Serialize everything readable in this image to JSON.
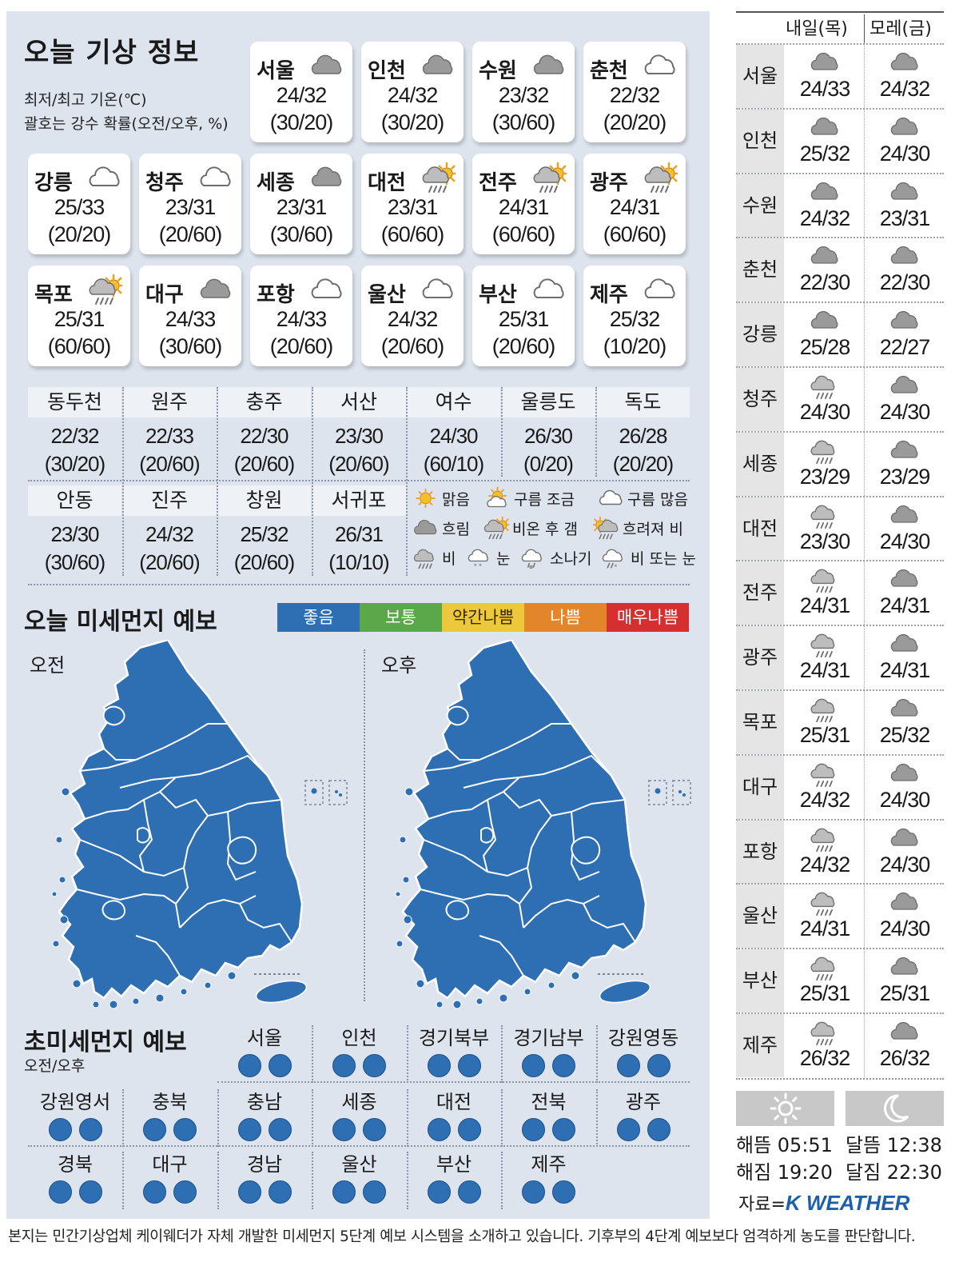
{
  "header": {
    "title": "오늘 기상 정보",
    "subtitle1": "최저/최고 기온(℃)",
    "subtitle2": "괄호는 강수 확률(오전/오후, %)"
  },
  "cards": [
    {
      "name": "서울",
      "temp": "24/32",
      "prob": "(30/20)",
      "icon": "cloudy-icon"
    },
    {
      "name": "인천",
      "temp": "24/32",
      "prob": "(30/20)",
      "icon": "cloudy-icon"
    },
    {
      "name": "수원",
      "temp": "23/32",
      "prob": "(30/60)",
      "icon": "cloudy-icon"
    },
    {
      "name": "춘천",
      "temp": "22/32",
      "prob": "(20/20)",
      "icon": "mostly-cloudy-icon"
    },
    {
      "name": "강릉",
      "temp": "25/33",
      "prob": "(20/20)",
      "icon": "mostly-cloudy-icon"
    },
    {
      "name": "청주",
      "temp": "23/31",
      "prob": "(20/60)",
      "icon": "mostly-cloudy-icon"
    },
    {
      "name": "세종",
      "temp": "23/31",
      "prob": "(30/60)",
      "icon": "cloudy-icon"
    },
    {
      "name": "대전",
      "temp": "23/31",
      "prob": "(60/60)",
      "icon": "rain-then-clear-icon"
    },
    {
      "name": "전주",
      "temp": "24/31",
      "prob": "(60/60)",
      "icon": "rain-then-clear-icon"
    },
    {
      "name": "광주",
      "temp": "24/31",
      "prob": "(60/60)",
      "icon": "rain-then-clear-icon"
    },
    {
      "name": "목포",
      "temp": "25/31",
      "prob": "(60/60)",
      "icon": "rain-then-clear-icon"
    },
    {
      "name": "대구",
      "temp": "24/33",
      "prob": "(30/60)",
      "icon": "cloudy-icon"
    },
    {
      "name": "포항",
      "temp": "24/33",
      "prob": "(20/60)",
      "icon": "mostly-cloudy-icon"
    },
    {
      "name": "울산",
      "temp": "24/32",
      "prob": "(20/60)",
      "icon": "mostly-cloudy-icon"
    },
    {
      "name": "부산",
      "temp": "25/31",
      "prob": "(20/60)",
      "icon": "mostly-cloudy-icon"
    },
    {
      "name": "제주",
      "temp": "25/32",
      "prob": "(10/20)",
      "icon": "mostly-cloudy-icon"
    }
  ],
  "small_cities": [
    {
      "name": "동두천",
      "temp": "22/32",
      "prob": "(30/20)"
    },
    {
      "name": "원주",
      "temp": "22/33",
      "prob": "(20/60)"
    },
    {
      "name": "충주",
      "temp": "22/30",
      "prob": "(20/60)"
    },
    {
      "name": "서산",
      "temp": "23/30",
      "prob": "(20/60)"
    },
    {
      "name": "여수",
      "temp": "24/30",
      "prob": "(60/10)"
    },
    {
      "name": "울릉도",
      "temp": "26/30",
      "prob": "(0/20)"
    },
    {
      "name": "독도",
      "temp": "26/28",
      "prob": "(20/20)"
    },
    {
      "name": "안동",
      "temp": "23/30",
      "prob": "(30/60)"
    },
    {
      "name": "진주",
      "temp": "24/32",
      "prob": "(20/60)"
    },
    {
      "name": "창원",
      "temp": "25/32",
      "prob": "(20/60)"
    },
    {
      "name": "서귀포",
      "temp": "26/31",
      "prob": "(10/10)"
    }
  ],
  "legend": [
    {
      "label": "맑음",
      "icon": "sunny-icon"
    },
    {
      "label": "구름 조금",
      "icon": "partly-cloudy-icon"
    },
    {
      "label": "구름 많음",
      "icon": "mostly-cloudy-icon"
    },
    {
      "label": "흐림",
      "icon": "cloudy-icon"
    },
    {
      "label": "비온 후 갬",
      "icon": "rain-then-clear-icon"
    },
    {
      "label": "흐려져 비",
      "icon": "clouding-rain-icon"
    },
    {
      "label": "비",
      "icon": "rain-icon"
    },
    {
      "label": "눈",
      "icon": "snow-icon"
    },
    {
      "label": "소나기",
      "icon": "shower-icon"
    },
    {
      "label": "비 또는 눈",
      "icon": "rain-or-snow-icon"
    }
  ],
  "dust": {
    "title": "오늘 미세먼지 예보",
    "scale": [
      {
        "label": "좋음",
        "color": "#2e6fb4"
      },
      {
        "label": "보통",
        "color": "#5aa84a"
      },
      {
        "label": "약간나쁨",
        "color": "#ecc83a"
      },
      {
        "label": "나쁨",
        "color": "#e3852b"
      },
      {
        "label": "매우나쁨",
        "color": "#d62f2f"
      }
    ],
    "am_label": "오전",
    "pm_label": "오후",
    "map_color": "#2e6fb4"
  },
  "pm25": {
    "title": "초미세먼지 예보",
    "subtitle": "오전/오후",
    "regions": [
      "서울",
      "인천",
      "경기북부",
      "경기남부",
      "강원영동",
      "강원영서",
      "충북",
      "충남",
      "세종",
      "대전",
      "전북",
      "광주",
      "경북",
      "대구",
      "경남",
      "울산",
      "부산",
      "제주"
    ],
    "level": "좋음"
  },
  "forecast": {
    "col1": "내일(목)",
    "col2": "모레(금)",
    "rows": [
      {
        "city": "서울",
        "d1": "24/33",
        "d1_icon": "cloudy-icon",
        "d2": "24/32",
        "d2_icon": "cloudy-icon"
      },
      {
        "city": "인천",
        "d1": "25/32",
        "d1_icon": "cloudy-icon",
        "d2": "24/30",
        "d2_icon": "cloudy-icon"
      },
      {
        "city": "수원",
        "d1": "24/32",
        "d1_icon": "cloudy-icon",
        "d2": "23/31",
        "d2_icon": "cloudy-icon"
      },
      {
        "city": "춘천",
        "d1": "22/30",
        "d1_icon": "cloudy-icon",
        "d2": "22/30",
        "d2_icon": "cloudy-icon"
      },
      {
        "city": "강릉",
        "d1": "25/28",
        "d1_icon": "cloudy-icon",
        "d2": "22/27",
        "d2_icon": "cloudy-icon"
      },
      {
        "city": "청주",
        "d1": "24/30",
        "d1_icon": "rain-icon",
        "d2": "24/30",
        "d2_icon": "cloudy-icon"
      },
      {
        "city": "세종",
        "d1": "23/29",
        "d1_icon": "rain-icon",
        "d2": "23/29",
        "d2_icon": "cloudy-icon"
      },
      {
        "city": "대전",
        "d1": "23/30",
        "d1_icon": "rain-icon",
        "d2": "24/30",
        "d2_icon": "cloudy-icon"
      },
      {
        "city": "전주",
        "d1": "24/31",
        "d1_icon": "rain-icon",
        "d2": "24/31",
        "d2_icon": "cloudy-icon"
      },
      {
        "city": "광주",
        "d1": "24/31",
        "d1_icon": "rain-icon",
        "d2": "24/31",
        "d2_icon": "cloudy-icon"
      },
      {
        "city": "목포",
        "d1": "25/31",
        "d1_icon": "rain-icon",
        "d2": "25/32",
        "d2_icon": "cloudy-icon"
      },
      {
        "city": "대구",
        "d1": "24/32",
        "d1_icon": "rain-icon",
        "d2": "24/30",
        "d2_icon": "cloudy-icon"
      },
      {
        "city": "포항",
        "d1": "24/32",
        "d1_icon": "rain-icon",
        "d2": "24/30",
        "d2_icon": "cloudy-icon"
      },
      {
        "city": "울산",
        "d1": "24/31",
        "d1_icon": "rain-icon",
        "d2": "24/30",
        "d2_icon": "cloudy-icon"
      },
      {
        "city": "부산",
        "d1": "25/31",
        "d1_icon": "rain-icon",
        "d2": "25/31",
        "d2_icon": "cloudy-icon"
      },
      {
        "city": "제주",
        "d1": "26/32",
        "d1_icon": "rain-icon",
        "d2": "26/32",
        "d2_icon": "cloudy-icon"
      }
    ]
  },
  "sun_moon": {
    "sunrise": "해뜸 05:51",
    "sunset": "해짐 19:20",
    "moonrise": "달뜸 12:38",
    "moonset": "달짐 22:30"
  },
  "source_label": "자료=",
  "source_brand": "K WEATHER",
  "footer": "본지는 민간기상업체 케이웨더가 자체 개발한 미세먼지 5단계 예보 시스템을 소개하고 있습니다. 기후부의 4단계 예보보다 엄격하게 농도를 판단합니다."
}
